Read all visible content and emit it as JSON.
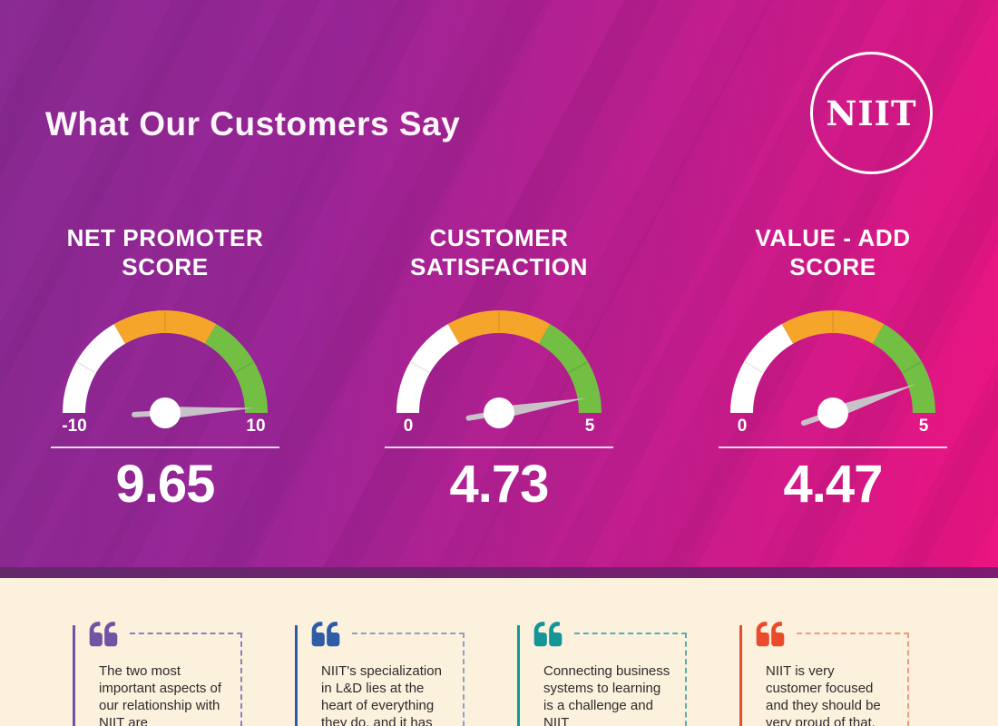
{
  "header": {
    "title": "What Our Customers Say",
    "logo_text": "NIIT"
  },
  "theme": {
    "bg_gradient": [
      "#8a2b93",
      "#c31d8e",
      "#ec1480"
    ],
    "separator_color": "#6b2470",
    "quotes_bg": "#fcf1dc",
    "gauge_white": "#ffffff",
    "gauge_orange": "#f5a62a",
    "gauge_green": "#72bf44",
    "needle_color": "#c7c3c8",
    "score_color": "#ffffff",
    "quote_text_color": "#2f2a2e"
  },
  "chart_data": [
    {
      "type": "gauge",
      "title_lines": [
        "NET PROMOTER",
        "SCORE"
      ],
      "min": -10,
      "max": 10,
      "value": 9.65,
      "value_label": "9.65",
      "min_label": "-10",
      "max_label": "10",
      "segments": [
        {
          "color": "#ffffff",
          "from": -10,
          "to": -3.33
        },
        {
          "color": "#f5a62a",
          "from": -3.33,
          "to": 3.33
        },
        {
          "color": "#72bf44",
          "from": 3.33,
          "to": 10
        }
      ]
    },
    {
      "type": "gauge",
      "title_lines": [
        "CUSTOMER",
        "SATISFACTION"
      ],
      "min": 0,
      "max": 5,
      "value": 4.73,
      "value_label": "4.73",
      "min_label": "0",
      "max_label": "5",
      "segments": [
        {
          "color": "#ffffff",
          "from": 0,
          "to": 1.67
        },
        {
          "color": "#f5a62a",
          "from": 1.67,
          "to": 3.33
        },
        {
          "color": "#72bf44",
          "from": 3.33,
          "to": 5
        }
      ]
    },
    {
      "type": "gauge",
      "title_lines": [
        "VALUE - ADD",
        "SCORE"
      ],
      "min": 0,
      "max": 5,
      "value": 4.47,
      "value_label": "4.47",
      "min_label": "0",
      "max_label": "5",
      "segments": [
        {
          "color": "#ffffff",
          "from": 0,
          "to": 1.67
        },
        {
          "color": "#f5a62a",
          "from": 1.67,
          "to": 3.33
        },
        {
          "color": "#72bf44",
          "from": 3.33,
          "to": 5
        }
      ]
    }
  ],
  "quotes": [
    {
      "text": "The two most important aspects of our relationship with NIIT are",
      "accent": "#6f55a4",
      "dash": "#8d7fc0"
    },
    {
      "text": "NIIT's specialization in L&D lies at the heart of everything they do, and it has",
      "accent": "#2e5ca6",
      "dash": "#8fa0c8"
    },
    {
      "text": "Connecting business systems to learning is a challenge and NIIT",
      "accent": "#169599",
      "dash": "#57aeae"
    },
    {
      "text": "NIIT is very customer focused and they should be very proud of that.",
      "accent": "#e94b2c",
      "dash": "#f09a82"
    }
  ]
}
